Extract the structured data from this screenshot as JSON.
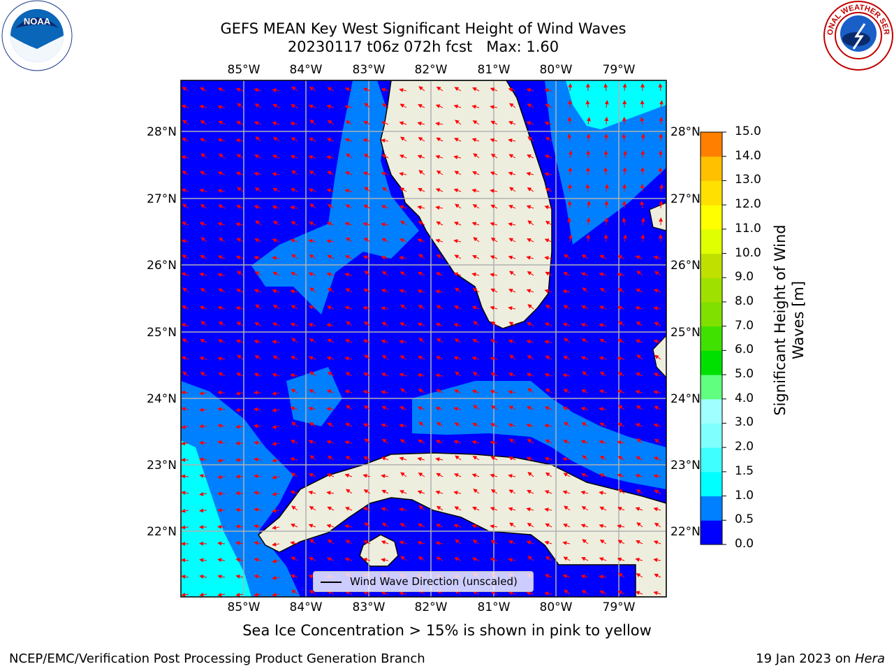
{
  "title_line1": "GEFS MEAN Key West Significant Height of Wind Waves",
  "title_line2": "20230117 t06z 072h fcst   Max: 1.60",
  "lon_labels": [
    "85°W",
    "84°W",
    "83°W",
    "82°W",
    "81°W",
    "80°W",
    "79°W"
  ],
  "lat_labels": [
    "28°N",
    "27°N",
    "26°N",
    "25°N",
    "24°N",
    "23°N",
    "22°N"
  ],
  "colorbar": {
    "title": "Significant Height of Wind Waves [m]",
    "ticks": [
      "15.0",
      "14.0",
      "13.0",
      "12.0",
      "11.0",
      "10.0",
      "9.0",
      "8.0",
      "7.0",
      "6.0",
      "5.0",
      "4.0",
      "3.0",
      "2.0",
      "1.5",
      "1.0",
      "0.5",
      "0.0"
    ],
    "colors": [
      "#0000ff",
      "#0080ff",
      "#00ffff",
      "#40ffff",
      "#80ffff",
      "#a0ffff",
      "#60ff80",
      "#00e000",
      "#40e000",
      "#80e000",
      "#a0e000",
      "#c0e000",
      "#e0ff00",
      "#ffff00",
      "#ffe000",
      "#ffc000",
      "#ff8000",
      "#ff4000",
      "#ff0000"
    ]
  },
  "legend_label": "Wind Wave Direction (unscaled)",
  "sea_ice_note": "Sea Ice Concentration > 15% is shown in pink to yellow",
  "footer_left": "NCEP/EMC/Verification Post Processing Product Generation Branch",
  "footer_date": "19 Jan 2023 on ",
  "footer_host": "Hera",
  "logos": {
    "noaa_text": "NOAA",
    "nws_text": "NATIONAL WEATHER SERVICE"
  },
  "map_colors": {
    "water_low": "#0000ff",
    "water_mid": "#0080ff",
    "water_high": "#00ffff",
    "land": "#eeeedf",
    "arrow": "#ff0000",
    "grid": "#b0b0b0"
  },
  "chart_data": {
    "type": "heatmap",
    "variable": "Significant Height of Wind Waves [m]",
    "lon_range": [
      -86.0,
      -78.3
    ],
    "lat_range": [
      21.0,
      28.8
    ],
    "max": 1.6,
    "contour_levels": [
      0.0,
      0.5,
      1.0,
      1.5,
      2.0,
      3.0,
      4.0,
      5.0,
      6.0,
      7.0,
      8.0,
      9.0,
      10.0,
      11.0,
      12.0,
      13.0,
      14.0,
      15.0
    ]
  }
}
